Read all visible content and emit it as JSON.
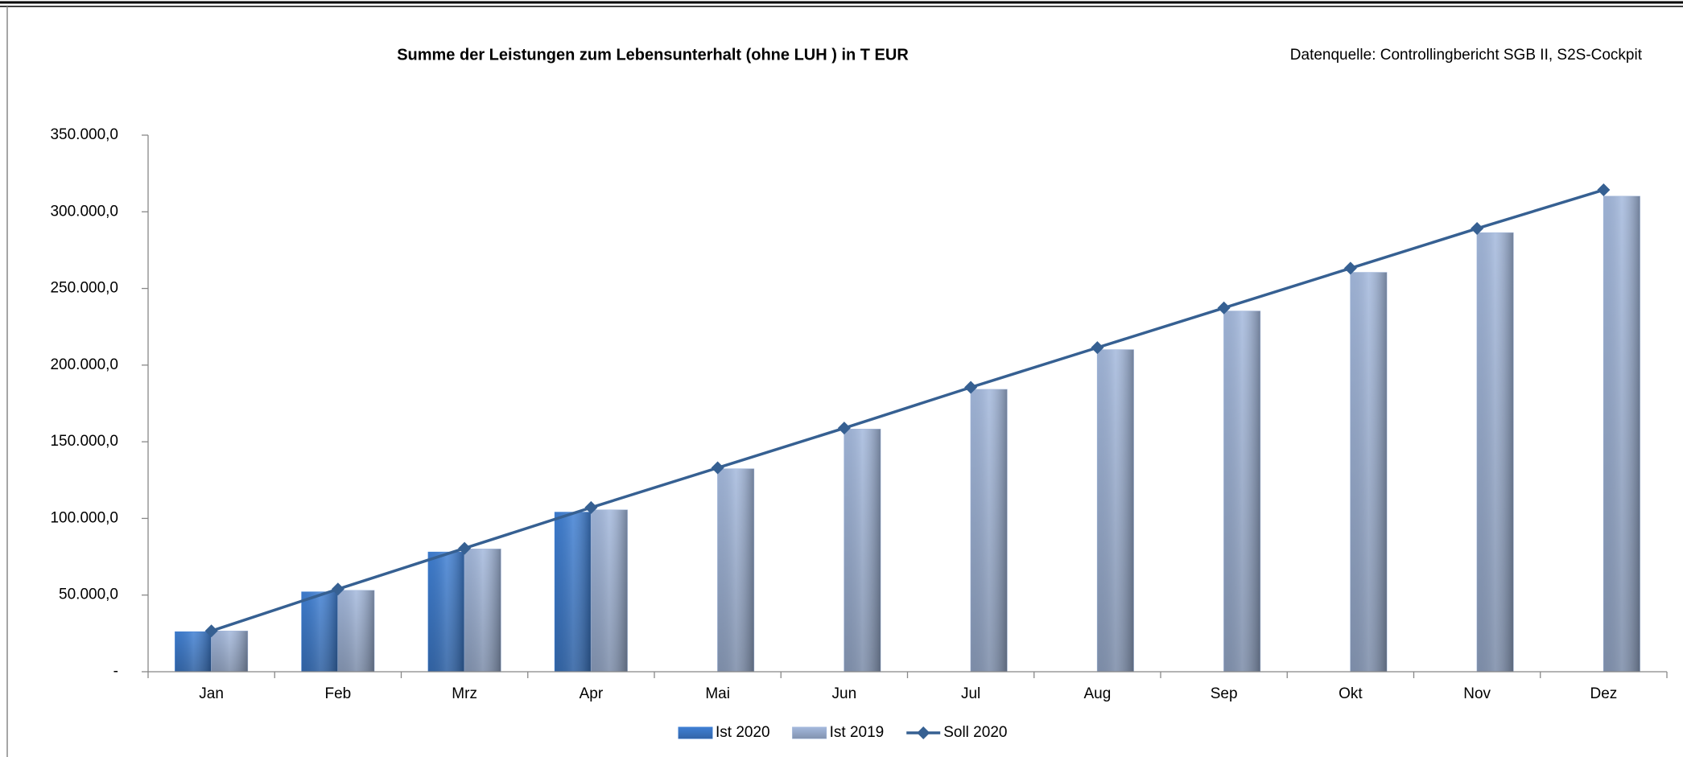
{
  "chart_data": {
    "type": "bar_line",
    "title": "Summe der Leistungen zum Lebensunterhalt (ohne LUH ) in T EUR",
    "source": "Datenquelle: Controllingbericht SGB II, S2S-Cockpit",
    "categories": [
      "Jan",
      "Feb",
      "Mrz",
      "Apr",
      "Mai",
      "Jun",
      "Jul",
      "Aug",
      "Sep",
      "Okt",
      "Nov",
      "Dez"
    ],
    "series": [
      {
        "name": "Ist 2020",
        "type": "bar",
        "color": "#3f7fd3",
        "values": [
          26000,
          52000,
          78000,
          104000,
          null,
          null,
          null,
          null,
          null,
          null,
          null,
          null
        ]
      },
      {
        "name": "Ist 2019",
        "type": "bar",
        "color": "#a3b8dc",
        "values": [
          26500,
          53000,
          80000,
          105500,
          132300,
          158200,
          184100,
          210000,
          235200,
          260400,
          286300,
          310100
        ]
      },
      {
        "name": "Soll 2020",
        "type": "line",
        "color": "#366092",
        "values": [
          26600,
          53900,
          80500,
          107100,
          133000,
          158900,
          185500,
          211400,
          237300,
          263200,
          289100,
          314300
        ]
      }
    ],
    "ylim": [
      0,
      350000
    ],
    "yticks": [
      {
        "value": 0,
        "label": "-"
      },
      {
        "value": 50000,
        "label": "50.000,0"
      },
      {
        "value": 100000,
        "label": "100.000,0"
      },
      {
        "value": 150000,
        "label": "150.000,0"
      },
      {
        "value": 200000,
        "label": "200.000,0"
      },
      {
        "value": 250000,
        "label": "250.000,0"
      },
      {
        "value": 300000,
        "label": "300.000,0"
      },
      {
        "value": 350000,
        "label": "350.000,0"
      }
    ],
    "grid": false
  }
}
